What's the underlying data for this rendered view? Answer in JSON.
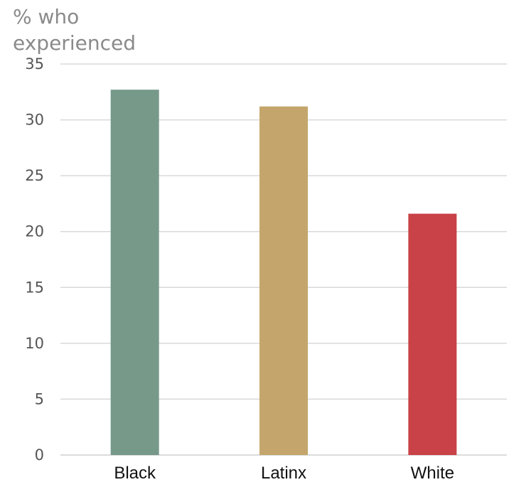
{
  "chart_data": {
    "type": "bar",
    "ylabel": "% who experienced",
    "ylabel_lines": [
      "% who",
      "experienced"
    ],
    "xlabel": "",
    "categories": [
      "Black",
      "Latinx",
      "White"
    ],
    "values": [
      32.7,
      31.2,
      21.6
    ],
    "colors": [
      "#76998a",
      "#c4a66c",
      "#c94247"
    ],
    "ylim": [
      0,
      35
    ],
    "yticks": [
      0,
      5,
      10,
      15,
      20,
      25,
      30,
      35
    ],
    "grid": true,
    "legend": "none"
  }
}
